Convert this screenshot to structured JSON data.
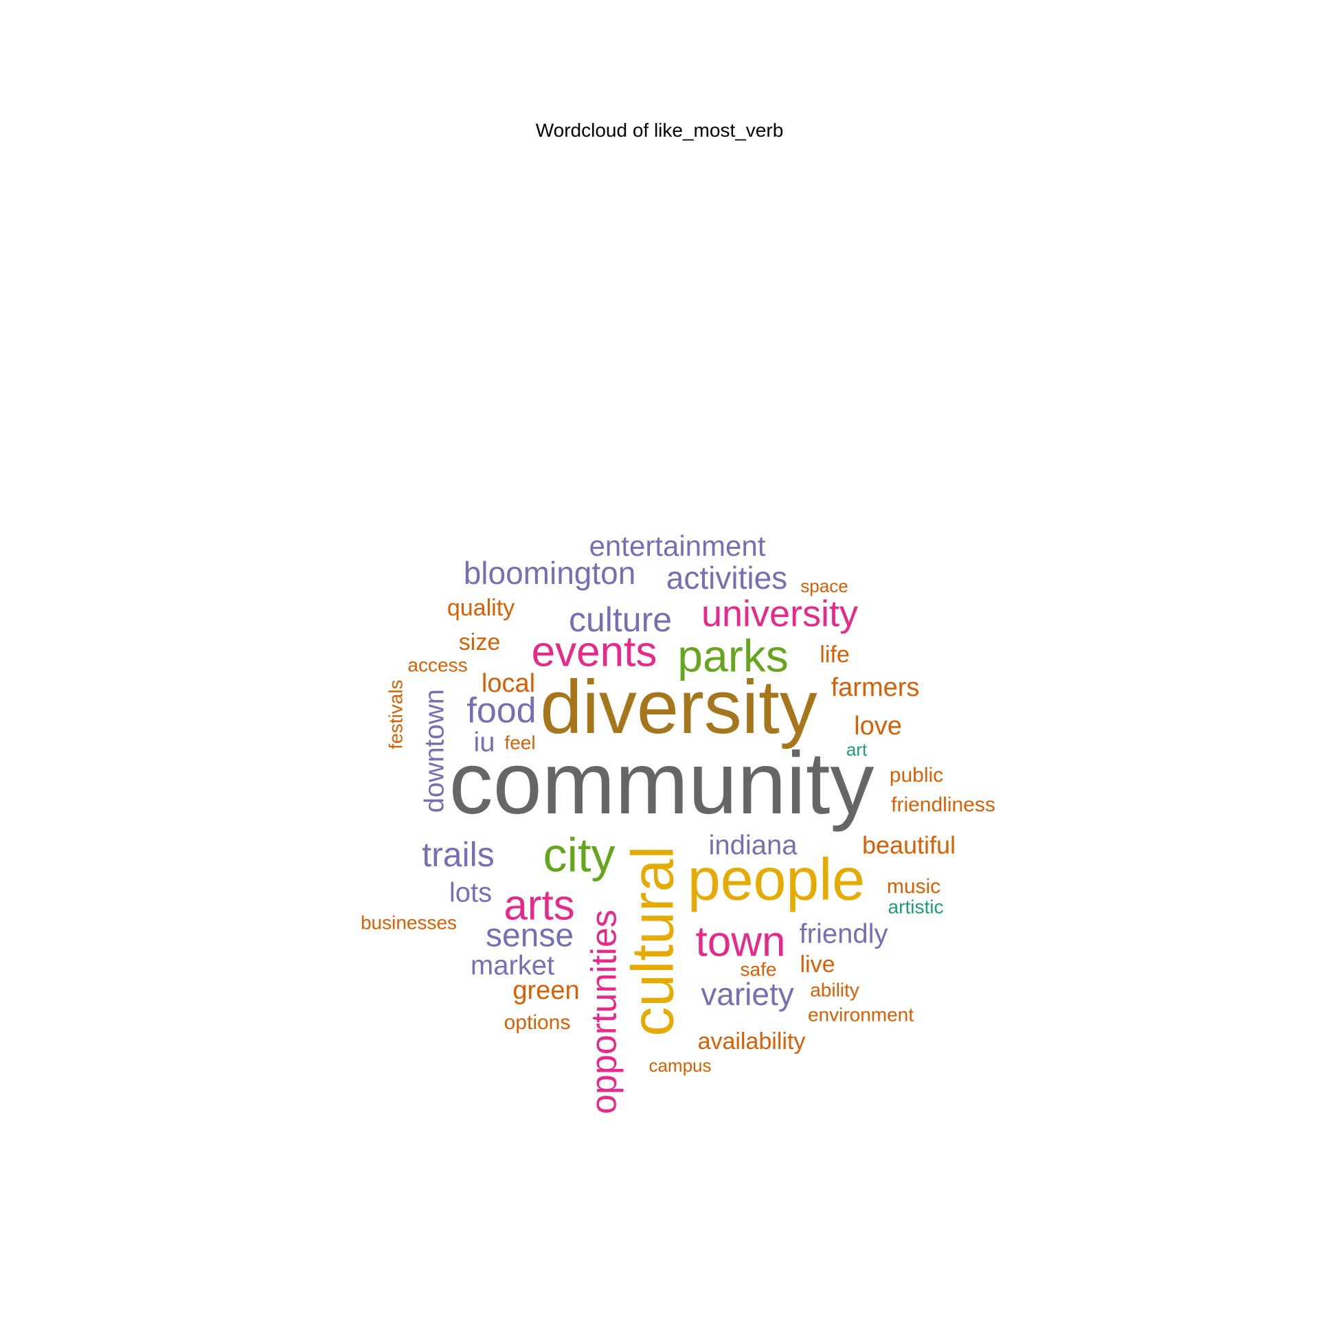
{
  "chart_data": {
    "type": "wordcloud",
    "title": "Wordcloud of like_most_verb",
    "colors": {
      "gray": "#666666",
      "gold": "#a6761d",
      "yellow": "#e6ab02",
      "magenta": "#e7298a",
      "green": "#66a61e",
      "purple": "#7570b3",
      "orange": "#d95f02",
      "teal": "#1b9e77"
    },
    "words": [
      {
        "text": "community",
        "color": "gray",
        "rotated": false
      },
      {
        "text": "diversity",
        "color": "gold",
        "rotated": false
      },
      {
        "text": "people",
        "color": "yellow",
        "rotated": false
      },
      {
        "text": "cultural",
        "color": "yellow",
        "rotated": true
      },
      {
        "text": "parks",
        "color": "green",
        "rotated": false
      },
      {
        "text": "events",
        "color": "magenta",
        "rotated": false
      },
      {
        "text": "city",
        "color": "green",
        "rotated": false
      },
      {
        "text": "arts",
        "color": "magenta",
        "rotated": false
      },
      {
        "text": "town",
        "color": "magenta",
        "rotated": false
      },
      {
        "text": "opportunities",
        "color": "magenta",
        "rotated": true
      },
      {
        "text": "university",
        "color": "magenta",
        "rotated": false
      },
      {
        "text": "food",
        "color": "purple",
        "rotated": false
      },
      {
        "text": "culture",
        "color": "purple",
        "rotated": false
      },
      {
        "text": "bloomington",
        "color": "purple",
        "rotated": false
      },
      {
        "text": "trails",
        "color": "purple",
        "rotated": false
      },
      {
        "text": "activities",
        "color": "purple",
        "rotated": false
      },
      {
        "text": "sense",
        "color": "purple",
        "rotated": false
      },
      {
        "text": "entertainment",
        "color": "purple",
        "rotated": false
      },
      {
        "text": "variety",
        "color": "purple",
        "rotated": false
      },
      {
        "text": "downtown",
        "color": "purple",
        "rotated": true
      },
      {
        "text": "indiana",
        "color": "purple",
        "rotated": false
      },
      {
        "text": "friendly",
        "color": "purple",
        "rotated": false
      },
      {
        "text": "market",
        "color": "purple",
        "rotated": false
      },
      {
        "text": "lots",
        "color": "purple",
        "rotated": false
      },
      {
        "text": "iu",
        "color": "purple",
        "rotated": false
      },
      {
        "text": "farmers",
        "color": "orange",
        "rotated": false
      },
      {
        "text": "local",
        "color": "orange",
        "rotated": false
      },
      {
        "text": "beautiful",
        "color": "orange",
        "rotated": false
      },
      {
        "text": "love",
        "color": "orange",
        "rotated": false
      },
      {
        "text": "green",
        "color": "orange",
        "rotated": false
      },
      {
        "text": "quality",
        "color": "orange",
        "rotated": false
      },
      {
        "text": "life",
        "color": "orange",
        "rotated": false
      },
      {
        "text": "size",
        "color": "orange",
        "rotated": false
      },
      {
        "text": "availability",
        "color": "orange",
        "rotated": false
      },
      {
        "text": "friendliness",
        "color": "orange",
        "rotated": false
      },
      {
        "text": "live",
        "color": "orange",
        "rotated": false
      },
      {
        "text": "music",
        "color": "orange",
        "rotated": false
      },
      {
        "text": "public",
        "color": "orange",
        "rotated": false
      },
      {
        "text": "options",
        "color": "orange",
        "rotated": false
      },
      {
        "text": "access",
        "color": "orange",
        "rotated": false
      },
      {
        "text": "feel",
        "color": "orange",
        "rotated": false
      },
      {
        "text": "businesses",
        "color": "orange",
        "rotated": false
      },
      {
        "text": "environment",
        "color": "orange",
        "rotated": false
      },
      {
        "text": "ability",
        "color": "orange",
        "rotated": false
      },
      {
        "text": "safe",
        "color": "orange",
        "rotated": false
      },
      {
        "text": "space",
        "color": "orange",
        "rotated": false
      },
      {
        "text": "campus",
        "color": "orange",
        "rotated": false
      },
      {
        "text": "festivals",
        "color": "orange",
        "rotated": true
      },
      {
        "text": "artistic",
        "color": "teal",
        "rotated": false
      },
      {
        "text": "art",
        "color": "teal",
        "rotated": false
      }
    ]
  }
}
